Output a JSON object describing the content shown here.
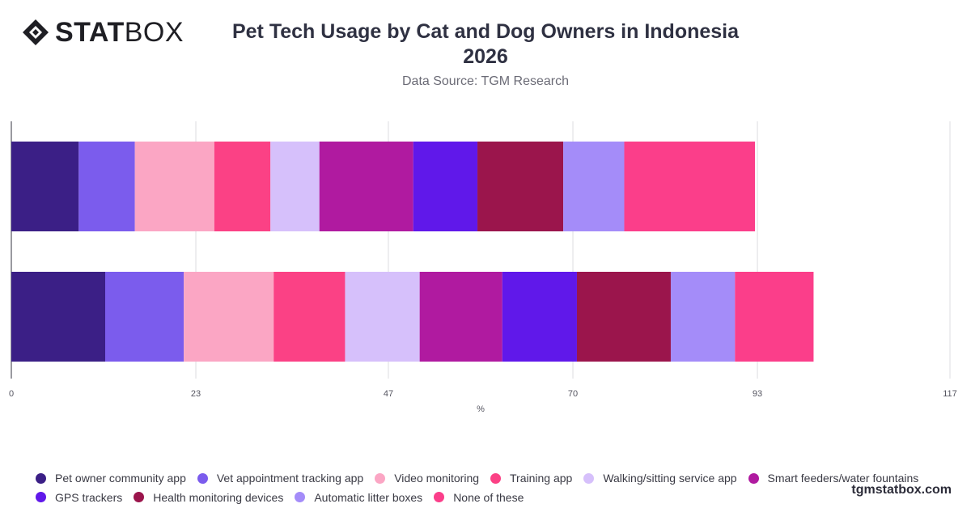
{
  "brand": {
    "logo_bold": "STAT",
    "logo_light": "BOX"
  },
  "title_line1": "Pet Tech Usage by Cat and Dog Owners in Indonesia",
  "title_line2": "2026",
  "subtitle": "Data Source: TGM Research",
  "credit": "tgmstatbox.com",
  "chart_data": {
    "type": "bar",
    "orientation": "horizontal",
    "stacked": true,
    "xlabel": "%",
    "xlim": [
      0,
      117
    ],
    "xticks": [
      0,
      23,
      47,
      70,
      93,
      117
    ],
    "categories": [
      "",
      ""
    ],
    "grid": true,
    "legend_position": "bottom",
    "series": [
      {
        "name": "Pet owner community app",
        "color": "#3b1f86",
        "values": [
          8.4,
          11.7
        ]
      },
      {
        "name": "Vet appointment tracking app",
        "color": "#7b5ced",
        "values": [
          7.0,
          9.8
        ]
      },
      {
        "name": "Video monitoring",
        "color": "#fba6c4",
        "values": [
          9.9,
          11.2
        ]
      },
      {
        "name": "Training app",
        "color": "#fb4185",
        "values": [
          7.0,
          8.9
        ]
      },
      {
        "name": "Walking/sitting service app",
        "color": "#d6c0fb",
        "values": [
          6.1,
          9.3
        ]
      },
      {
        "name": "Smart feeders/water fountains",
        "color": "#b01aa0",
        "values": [
          11.7,
          10.3
        ]
      },
      {
        "name": "GPS trackers",
        "color": "#6018ea",
        "values": [
          8.0,
          9.3
        ]
      },
      {
        "name": "Health monitoring devices",
        "color": "#9b154c",
        "values": [
          10.7,
          11.7
        ]
      },
      {
        "name": "Automatic litter boxes",
        "color": "#a48cf9",
        "values": [
          7.6,
          8.0
        ]
      },
      {
        "name": "None of these",
        "color": "#fb3e8a",
        "values": [
          16.3,
          9.8
        ]
      }
    ]
  }
}
